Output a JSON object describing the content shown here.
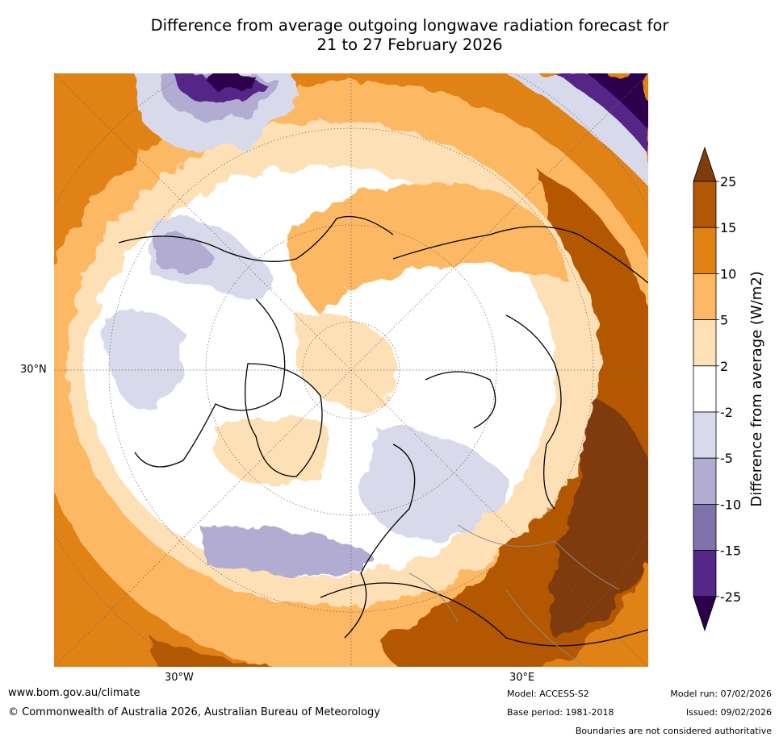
{
  "title": {
    "line1": "Difference from average outgoing longwave radiation forecast for",
    "line2": "21 to 27 February 2026"
  },
  "map": {
    "projection": "north-polar-stereographic",
    "lat_label": "30°N",
    "lon_labels": [
      "30°W",
      "30°E"
    ]
  },
  "colorbar": {
    "label": "Difference from average (W/m2)",
    "ticks": [
      "25",
      "15",
      "10",
      "5",
      "2",
      "-2",
      "-5",
      "-10",
      "-15",
      "-25"
    ],
    "colors": [
      "#7f3b08",
      "#b35806",
      "#e08214",
      "#fdb863",
      "#fee0b6",
      "#ffffff",
      "#d8daeb",
      "#b2abd2",
      "#8073ac",
      "#542788",
      "#2d004b"
    ]
  },
  "footer": {
    "website": "www.bom.gov.au/climate",
    "copyright": "© Commonwealth of Australia 2026, Australian Bureau of Meteorology",
    "model": "Model: ACCESS-S2",
    "base_period": "Base period: 1981-2018",
    "model_run": "Model run: 07/02/2026",
    "issued": "Issued: 09/02/2026",
    "disclaimer": "Boundaries are not considered authoritative"
  }
}
